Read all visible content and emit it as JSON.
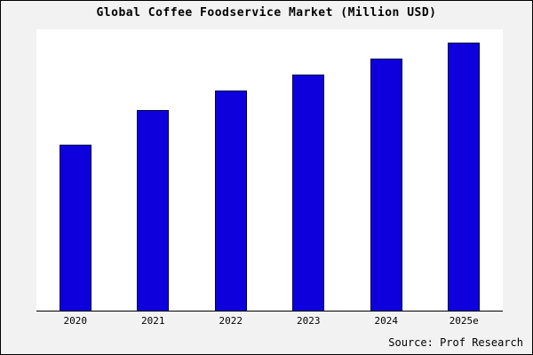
{
  "chart_data": {
    "type": "bar",
    "title": "Global Coffee Foodservice Market (Million USD)",
    "categories": [
      "2020",
      "2021",
      "2022",
      "2023",
      "2024",
      "2025e"
    ],
    "values": [
      62,
      75,
      82,
      88,
      94,
      100
    ],
    "xlabel": "",
    "ylabel": "",
    "ylim": [
      0,
      105
    ],
    "grid": false,
    "legend": false,
    "bar_color": "#0d00dd",
    "bar_border_color": "#000044",
    "plot_background": "#ffffff",
    "outer_background": "#f2f2f2"
  },
  "source": "Source: Prof Research"
}
